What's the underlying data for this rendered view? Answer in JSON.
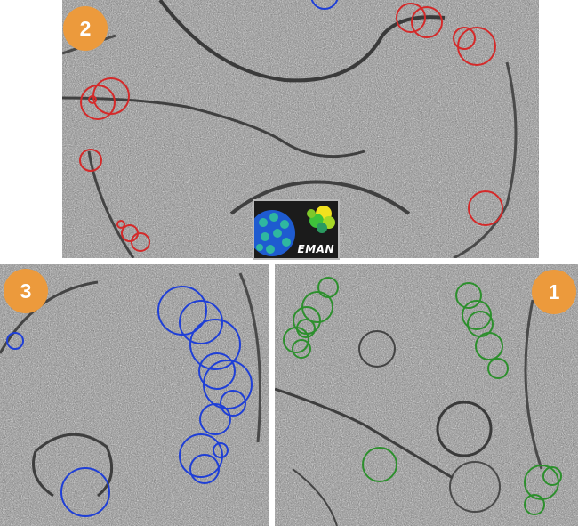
{
  "panels": [
    {
      "id": "panel-2",
      "label": "2",
      "ring_color": "#d42a2a"
    },
    {
      "id": "panel-3",
      "label": "3",
      "ring_color": "#1f3fd6"
    },
    {
      "id": "panel-1",
      "label": "1",
      "ring_color": "#2d8f2d"
    }
  ],
  "badge_color": "#ec9a3c",
  "logo": {
    "text": "EMAN"
  }
}
